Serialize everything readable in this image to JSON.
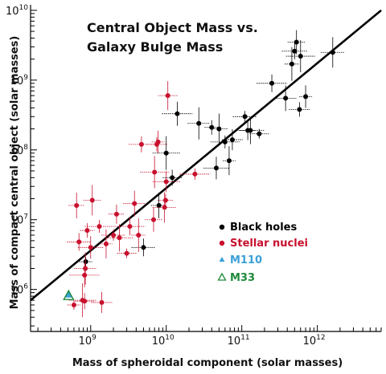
{
  "chart_data": {
    "type": "scatter",
    "title_lines": [
      "Central Object Mass vs.",
      "Galaxy Bulge Mass"
    ],
    "xlabel": "Mass of spheroidal component (solar masses)",
    "ylabel": "Mass of compact central object (solar masses)",
    "x_scale": "log",
    "y_scale": "log",
    "xlim": [
      160000000.0,
      7000000000000.0
    ],
    "ylim": [
      250000.0,
      12000000000.0
    ],
    "x_ticks": [
      {
        "base": "10",
        "exp": "9",
        "value": 1000000000.0
      },
      {
        "base": "10",
        "exp": "10",
        "value": 10000000000.0
      },
      {
        "base": "10",
        "exp": "11",
        "value": 100000000000.0
      },
      {
        "base": "10",
        "exp": "12",
        "value": 1000000000000.0
      }
    ],
    "y_ticks": [
      {
        "base": "10",
        "exp": "6",
        "value": 1000000.0
      },
      {
        "base": "10",
        "exp": "7",
        "value": 10000000.0
      },
      {
        "base": "10",
        "exp": "8",
        "value": 100000000.0
      },
      {
        "base": "10",
        "exp": "9",
        "value": 1000000000.0
      },
      {
        "base": "10",
        "exp": "10",
        "value": 10000000000.0
      }
    ],
    "fit_line": {
      "x": [
        160000000.0,
        7000000000000.0
      ],
      "y": [
        700000.0,
        10000000000.0
      ]
    },
    "legend": [
      {
        "label": "Black holes",
        "color": "#000000",
        "marker": "dot"
      },
      {
        "label": "Stellar nuclei",
        "color": "#c8102e",
        "marker": "dot"
      },
      {
        "label": "M110",
        "color": "#3aa0d8",
        "marker": "triangle-filled"
      },
      {
        "label": "M33",
        "color": "#1e8a3a",
        "marker": "triangle-open"
      }
    ],
    "series": [
      {
        "name": "Black holes",
        "color": "#000000",
        "points": [
          {
            "x": 860000000.0,
            "y": 2500000.0
          },
          {
            "x": 5000000000.0,
            "y": 4000000.0
          },
          {
            "x": 8000000000.0,
            "y": 16000000.0
          },
          {
            "x": 10000000000.0,
            "y": 90000000.0
          },
          {
            "x": 12000000000.0,
            "y": 40000000.0
          },
          {
            "x": 14000000000.0,
            "y": 330000000.0
          },
          {
            "x": 27000000000.0,
            "y": 240000000.0
          },
          {
            "x": 40000000000.0,
            "y": 210000000.0
          },
          {
            "x": 46000000000.0,
            "y": 55000000.0
          },
          {
            "x": 50000000000.0,
            "y": 200000000.0
          },
          {
            "x": 60000000000.0,
            "y": 130000000.0
          },
          {
            "x": 75000000000.0,
            "y": 140000000.0
          },
          {
            "x": 68000000000.0,
            "y": 70000000.0
          },
          {
            "x": 110000000000.0,
            "y": 300000000.0
          },
          {
            "x": 120000000000.0,
            "y": 190000000.0
          },
          {
            "x": 130000000000.0,
            "y": 190000000.0
          },
          {
            "x": 170000000000.0,
            "y": 170000000.0
          },
          {
            "x": 250000000000.0,
            "y": 900000000.0
          },
          {
            "x": 380000000000.0,
            "y": 550000000.0
          },
          {
            "x": 460000000000.0,
            "y": 1700000000.0
          },
          {
            "x": 500000000000.0,
            "y": 2600000000.0
          },
          {
            "x": 530000000000.0,
            "y": 3500000000.0
          },
          {
            "x": 600000000000.0,
            "y": 2200000000.0
          },
          {
            "x": 580000000000.0,
            "y": 380000000.0
          },
          {
            "x": 700000000000.0,
            "y": 580000000.0
          },
          {
            "x": 1600000000000.0,
            "y": 2500000000.0
          }
        ]
      },
      {
        "name": "Stellar nuclei",
        "color": "#c8102e",
        "points": [
          {
            "x": 600000000.0,
            "y": 600000.0
          },
          {
            "x": 700000000.0,
            "y": 4800000.0
          },
          {
            "x": 650000000.0,
            "y": 16000000.0
          },
          {
            "x": 780000000.0,
            "y": 700000.0
          },
          {
            "x": 830000000.0,
            "y": 680000.0
          },
          {
            "x": 830000000.0,
            "y": 1600000.0
          },
          {
            "x": 850000000.0,
            "y": 2000000.0
          },
          {
            "x": 900000000.0,
            "y": 7000000.0
          },
          {
            "x": 1000000000.0,
            "y": 4000000.0
          },
          {
            "x": 1050000000.0,
            "y": 19000000.0
          },
          {
            "x": 1300000000.0,
            "y": 8000000.0
          },
          {
            "x": 1400000000.0,
            "y": 650000.0
          },
          {
            "x": 1600000000.0,
            "y": 4500000.0
          },
          {
            "x": 2000000000.0,
            "y": 6000000.0
          },
          {
            "x": 2200000000.0,
            "y": 12000000.0
          },
          {
            "x": 2400000000.0,
            "y": 5500000.0
          },
          {
            "x": 3000000000.0,
            "y": 3300000.0
          },
          {
            "x": 3300000000.0,
            "y": 8000000.0
          },
          {
            "x": 3800000000.0,
            "y": 17000000.0
          },
          {
            "x": 4300000000.0,
            "y": 6000000.0
          },
          {
            "x": 4700000000.0,
            "y": 120000000.0
          },
          {
            "x": 6800000000.0,
            "y": 10000000.0
          },
          {
            "x": 7000000000.0,
            "y": 48000000.0
          },
          {
            "x": 7500000000.0,
            "y": 120000000.0
          },
          {
            "x": 7800000000.0,
            "y": 130000000.0
          },
          {
            "x": 9500000000.0,
            "y": 15000000.0
          },
          {
            "x": 9800000000.0,
            "y": 19000000.0
          },
          {
            "x": 10000000000.0,
            "y": 35000000.0
          },
          {
            "x": 10500000000.0,
            "y": 600000000.0
          },
          {
            "x": 24000000000.0,
            "y": 45000000.0
          }
        ]
      },
      {
        "name": "M110",
        "color": "#3aa0d8",
        "points": [
          {
            "x": 510000000.0,
            "y": 850000.0
          }
        ]
      },
      {
        "name": "M33",
        "color": "#1e8a3a",
        "points": [
          {
            "x": 510000000.0,
            "y": 820000.0
          }
        ]
      }
    ]
  }
}
